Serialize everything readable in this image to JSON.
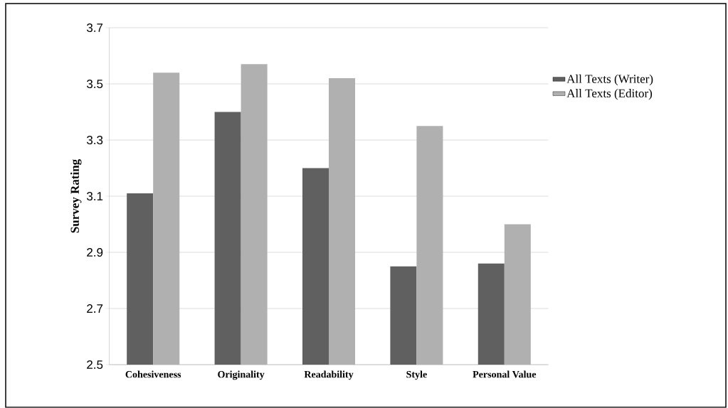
{
  "chart_data": {
    "type": "bar",
    "ylabel": "Survey Rating",
    "categories": [
      "Cohesiveness",
      "Originality",
      "Readability",
      "Style",
      "Personal Value"
    ],
    "series": [
      {
        "name": "All Texts (Writer)",
        "color": "#606060",
        "values": [
          3.11,
          3.4,
          3.2,
          2.85,
          2.86
        ]
      },
      {
        "name": "All Texts (Editor)",
        "color": "#b0b0b0",
        "values": [
          3.54,
          3.57,
          3.52,
          3.35,
          3.0
        ]
      }
    ],
    "ylim": [
      2.5,
      3.7
    ],
    "yticks": [
      2.5,
      2.7,
      2.9,
      3.1,
      3.3,
      3.5,
      3.7
    ],
    "grid": "y",
    "legend": "right"
  }
}
